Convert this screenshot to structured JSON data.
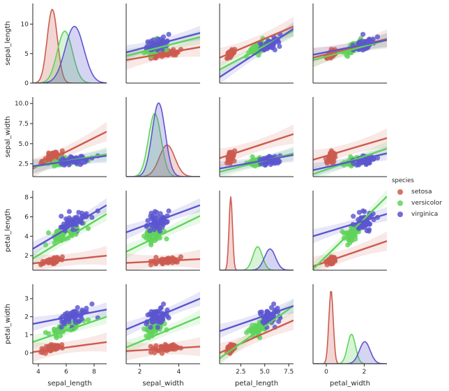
{
  "chart_data": {
    "type": "scatter",
    "kind": "pairplot",
    "variables": [
      "sepal_length",
      "sepal_width",
      "petal_length",
      "petal_width"
    ],
    "hue": "species",
    "diag_kind": "kde",
    "grid": false,
    "legend_position": "right",
    "legend": {
      "title": "species",
      "entries": [
        {
          "name": "setosa",
          "color": "#cd5a4e"
        },
        {
          "name": "versicolor",
          "color": "#5fd35a"
        },
        {
          "name": "virginica",
          "color": "#5b55cf"
        }
      ]
    },
    "axes": {
      "sepal_length": {
        "label": "sepal_length",
        "lim": [
          3.6,
          8.9
        ],
        "ticks": [
          4,
          6,
          8
        ],
        "row_lim": [
          0,
          13.5
        ],
        "row_ticks": [
          0,
          5,
          10
        ]
      },
      "sepal_width": {
        "label": "sepal_width",
        "lim": [
          1.3,
          5.1
        ],
        "ticks": [
          2,
          4
        ],
        "row_lim": [
          0.9,
          10.8
        ],
        "row_ticks": [
          2.5,
          5.0,
          7.5,
          10.0
        ],
        "row_tick_labels": [
          "2.5",
          "5.0",
          "7.5",
          "10.0"
        ]
      },
      "petal_length": {
        "label": "petal_length",
        "lim": [
          0.3,
          8.0
        ],
        "ticks": [
          2.5,
          5.0,
          7.5
        ],
        "tick_labels": [
          "2.5",
          "5.0",
          "7.5"
        ],
        "row_lim": [
          0.5,
          8.7
        ],
        "row_ticks": [
          2,
          4,
          6,
          8
        ]
      },
      "petal_width": {
        "label": "petal_width",
        "lim": [
          -0.7,
          3.2
        ],
        "ticks": [
          0,
          2
        ],
        "row_lim": [
          -0.6,
          3.8
        ],
        "row_ticks": [
          0,
          1,
          2,
          3
        ]
      }
    },
    "series": [
      {
        "name": "setosa",
        "color": "#cd5a4e",
        "means": [
          5.0,
          3.4,
          1.46,
          0.25
        ],
        "sds": [
          0.35,
          0.38,
          0.17,
          0.11
        ],
        "kde_peaks": [
          0.78,
          0.45,
          2.5,
          5.0
        ]
      },
      {
        "name": "versicolor",
        "color": "#5fd35a",
        "means": [
          5.9,
          2.77,
          4.26,
          1.33
        ],
        "sds": [
          0.52,
          0.31,
          0.47,
          0.2
        ],
        "kde_peaks": [
          0.55,
          0.9,
          0.8,
          2.0
        ]
      },
      {
        "name": "virginica",
        "color": "#5b55cf",
        "means": [
          6.59,
          2.97,
          5.55,
          2.03
        ],
        "sds": [
          0.64,
          0.32,
          0.55,
          0.27
        ],
        "kde_peaks": [
          0.6,
          1.05,
          0.72,
          1.5
        ]
      }
    ],
    "regression_lines": [
      {
        "x": "sepal_width",
        "y": "sepal_length",
        "segments": {
          "setosa": [
            [
              1.3,
              3.9
            ],
            [
              5.1,
              6.1
            ]
          ],
          "versicolor": [
            [
              1.3,
              4.6
            ],
            [
              5.1,
              7.8
            ]
          ],
          "virginica": [
            [
              1.3,
              5.2
            ],
            [
              5.1,
              8.5
            ]
          ]
        }
      },
      {
        "x": "petal_length",
        "y": "sepal_length",
        "segments": {
          "setosa": [
            [
              0.3,
              4.3
            ],
            [
              8.0,
              9.6
            ]
          ],
          "versicolor": [
            [
              0.3,
              2.3
            ],
            [
              8.0,
              8.9
            ]
          ],
          "virginica": [
            [
              0.3,
              1.0
            ],
            [
              8.0,
              9.2
            ]
          ]
        }
      },
      {
        "x": "petal_width",
        "y": "sepal_length",
        "segments": {
          "setosa": [
            [
              -0.7,
              4.3
            ],
            [
              3.2,
              7.5
            ]
          ],
          "versicolor": [
            [
              -0.7,
              3.9
            ],
            [
              3.2,
              7.3
            ]
          ],
          "virginica": [
            [
              -0.7,
              4.8
            ],
            [
              3.2,
              7.3
            ]
          ]
        }
      },
      {
        "x": "sepal_length",
        "y": "sepal_width",
        "segments": {
          "setosa": [
            [
              3.6,
              1.9
            ],
            [
              8.9,
              6.5
            ]
          ],
          "versicolor": [
            [
              3.6,
              2.1
            ],
            [
              8.9,
              3.7
            ]
          ],
          "virginica": [
            [
              3.6,
              2.2
            ],
            [
              8.9,
              3.5
            ]
          ]
        }
      },
      {
        "x": "petal_length",
        "y": "sepal_width",
        "segments": {
          "setosa": [
            [
              0.3,
              3.2
            ],
            [
              8.0,
              6.2
            ]
          ],
          "versicolor": [
            [
              0.3,
              1.5
            ],
            [
              8.0,
              3.8
            ]
          ],
          "virginica": [
            [
              0.3,
              1.9
            ],
            [
              8.0,
              3.6
            ]
          ]
        }
      },
      {
        "x": "petal_width",
        "y": "sepal_width",
        "segments": {
          "setosa": [
            [
              -0.7,
              3.0
            ],
            [
              3.2,
              5.7
            ]
          ],
          "versicolor": [
            [
              -0.7,
              1.2
            ],
            [
              3.2,
              4.4
            ]
          ],
          "virginica": [
            [
              -0.7,
              1.7
            ],
            [
              3.2,
              3.8
            ]
          ]
        }
      },
      {
        "x": "sepal_length",
        "y": "petal_length",
        "segments": {
          "setosa": [
            [
              3.6,
              1.2
            ],
            [
              8.9,
              2.0
            ]
          ],
          "versicolor": [
            [
              3.6,
              1.7
            ],
            [
              8.9,
              6.3
            ]
          ],
          "virginica": [
            [
              3.6,
              2.7
            ],
            [
              8.9,
              7.2
            ]
          ]
        }
      },
      {
        "x": "sepal_width",
        "y": "petal_length",
        "segments": {
          "setosa": [
            [
              1.3,
              1.25
            ],
            [
              5.1,
              1.65
            ]
          ],
          "versicolor": [
            [
              1.3,
              2.4
            ],
            [
              5.1,
              6.1
            ]
          ],
          "virginica": [
            [
              1.3,
              4.4
            ],
            [
              5.1,
              7.2
            ]
          ]
        }
      },
      {
        "x": "petal_width",
        "y": "petal_length",
        "segments": {
          "setosa": [
            [
              -0.7,
              0.9
            ],
            [
              3.2,
              3.5
            ]
          ],
          "versicolor": [
            [
              -0.7,
              0.6
            ],
            [
              3.2,
              8.1
            ]
          ],
          "virginica": [
            [
              -0.7,
              4.0
            ],
            [
              3.2,
              6.3
            ]
          ]
        }
      },
      {
        "x": "sepal_length",
        "y": "petal_width",
        "segments": {
          "setosa": [
            [
              3.6,
              0.05
            ],
            [
              8.9,
              0.6
            ]
          ],
          "versicolor": [
            [
              3.6,
              0.6
            ],
            [
              8.9,
              2.0
            ]
          ],
          "virginica": [
            [
              3.6,
              1.6
            ],
            [
              8.9,
              2.4
            ]
          ]
        }
      },
      {
        "x": "sepal_width",
        "y": "petal_width",
        "segments": {
          "setosa": [
            [
              1.3,
              0.1
            ],
            [
              5.1,
              0.35
            ]
          ],
          "versicolor": [
            [
              1.3,
              0.3
            ],
            [
              5.1,
              2.0
            ]
          ],
          "virginica": [
            [
              1.3,
              1.3
            ],
            [
              5.1,
              3.0
            ]
          ]
        }
      },
      {
        "x": "petal_length",
        "y": "petal_width",
        "segments": {
          "setosa": [
            [
              0.3,
              0.0
            ],
            [
              8.0,
              1.8
            ]
          ],
          "versicolor": [
            [
              0.3,
              -0.3
            ],
            [
              8.0,
              2.6
            ]
          ],
          "virginica": [
            [
              0.3,
              1.2
            ],
            [
              8.0,
              2.6
            ]
          ]
        }
      }
    ]
  }
}
